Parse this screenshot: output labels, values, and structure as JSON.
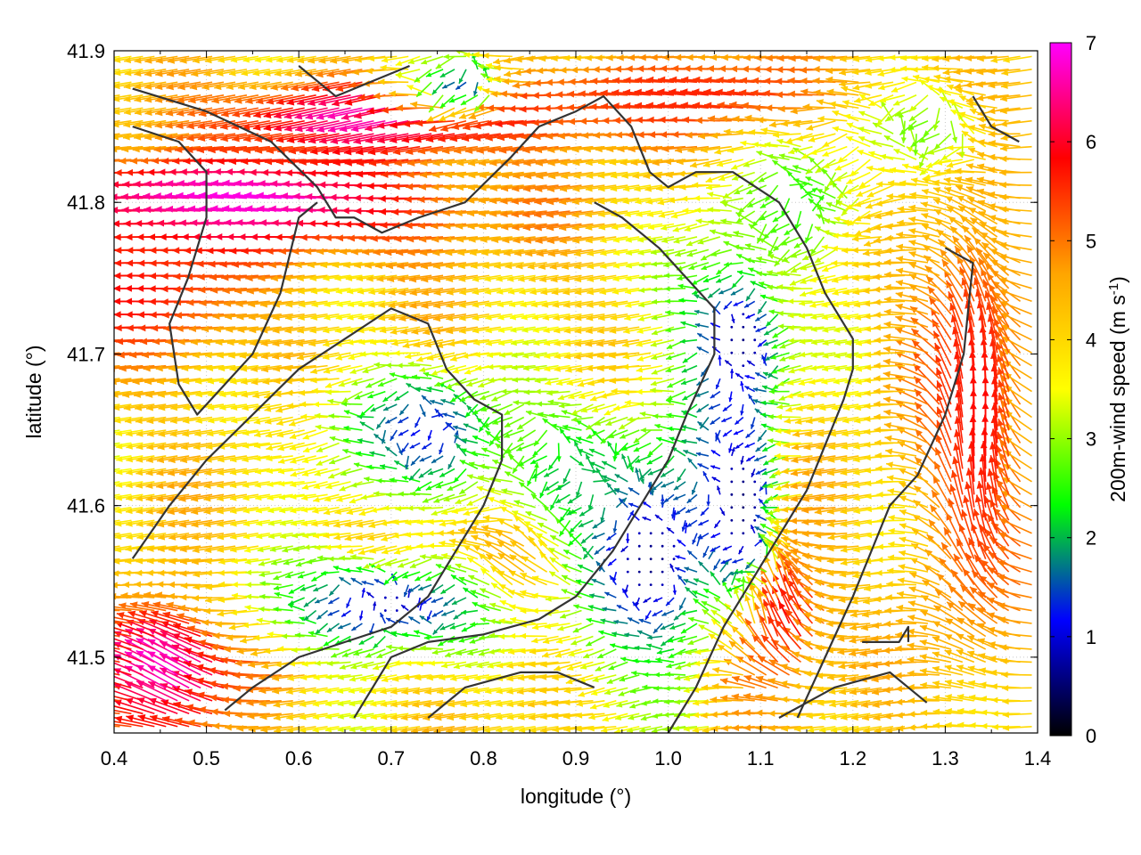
{
  "chart_data": {
    "type": "vector-field",
    "xlabel": "longitude (°)",
    "ylabel": "latitude (°)",
    "xlim": [
      0.4,
      1.4
    ],
    "ylim": [
      41.45,
      41.9
    ],
    "xticks": [
      "0.4",
      "0.5",
      "0.6",
      "0.7",
      "0.8",
      "0.9",
      "1.0",
      "1.1",
      "1.2",
      "1.3",
      "1.4"
    ],
    "yticks": [
      "41.5",
      "41.6",
      "41.7",
      "41.8",
      "41.9"
    ],
    "grid": true,
    "colorbar": {
      "label_main": "200m-wind speed (m s",
      "label_sup": "-1",
      "label_end": ")",
      "min": 0,
      "max": 7,
      "ticks": [
        "0",
        "1",
        "2",
        "3",
        "4",
        "5",
        "6",
        "7"
      ],
      "stops": [
        "#000000",
        "#0000ff",
        "#00ff00",
        "#ffff00",
        "#ffa500",
        "#ff0000",
        "#ff00ff"
      ]
    },
    "field": {
      "background_speed": 4.0,
      "background_dir": [
        -0.95,
        -0.15
      ],
      "features": [
        {
          "kind": "jet",
          "lon": 0.55,
          "lat": 41.8,
          "rx": 0.25,
          "ry": 0.035,
          "speed": 7.0,
          "dir": [
            -1.0,
            0.08
          ]
        },
        {
          "kind": "jet",
          "lon": 0.72,
          "lat": 41.86,
          "rx": 0.2,
          "ry": 0.025,
          "speed": 6.8,
          "dir": [
            -0.97,
            -0.22
          ]
        },
        {
          "kind": "jet",
          "lon": 0.45,
          "lat": 41.74,
          "rx": 0.12,
          "ry": 0.05,
          "speed": 5.8,
          "dir": [
            -1.0,
            0.0
          ]
        },
        {
          "kind": "jet",
          "lon": 1.05,
          "lat": 41.87,
          "rx": 0.22,
          "ry": 0.03,
          "speed": 5.6,
          "dir": [
            -1.0,
            0.1
          ]
        },
        {
          "kind": "jet",
          "lon": 1.34,
          "lat": 41.65,
          "rx": 0.06,
          "ry": 0.15,
          "speed": 5.8,
          "dir": [
            0.0,
            1.0
          ]
        },
        {
          "kind": "jet",
          "lon": 1.12,
          "lat": 41.53,
          "rx": 0.06,
          "ry": 0.05,
          "speed": 6.5,
          "dir": [
            -0.3,
            0.95
          ]
        },
        {
          "kind": "jet",
          "lon": 0.47,
          "lat": 41.49,
          "rx": 0.08,
          "ry": 0.05,
          "speed": 6.8,
          "dir": [
            -0.85,
            0.5
          ]
        },
        {
          "kind": "jet",
          "lon": 0.85,
          "lat": 41.56,
          "rx": 0.06,
          "ry": 0.03,
          "speed": 5.3,
          "dir": [
            -0.7,
            0.7
          ]
        },
        {
          "kind": "calm",
          "lon": 0.74,
          "lat": 41.65,
          "rx": 0.1,
          "ry": 0.04,
          "speed": 1.2
        },
        {
          "kind": "calm",
          "lon": 0.7,
          "lat": 41.535,
          "rx": 0.12,
          "ry": 0.03,
          "speed": 0.8
        },
        {
          "kind": "calm",
          "lon": 0.98,
          "lat": 41.57,
          "rx": 0.08,
          "ry": 0.08,
          "speed": 0.5
        },
        {
          "kind": "calm",
          "lon": 1.08,
          "lat": 41.71,
          "rx": 0.06,
          "ry": 0.06,
          "speed": 0.6
        },
        {
          "kind": "calm",
          "lon": 1.08,
          "lat": 41.6,
          "rx": 0.05,
          "ry": 0.07,
          "speed": 0.5
        },
        {
          "kind": "calm",
          "lon": 0.78,
          "lat": 41.88,
          "rx": 0.06,
          "ry": 0.02,
          "speed": 1.5
        },
        {
          "kind": "calm",
          "lon": 0.9,
          "lat": 41.62,
          "rx": 0.08,
          "ry": 0.04,
          "speed": 2.0
        },
        {
          "kind": "calm",
          "lon": 1.15,
          "lat": 41.8,
          "rx": 0.08,
          "ry": 0.04,
          "speed": 2.5
        },
        {
          "kind": "calm",
          "lon": 1.28,
          "lat": 41.85,
          "rx": 0.08,
          "ry": 0.03,
          "speed": 2.8
        }
      ]
    },
    "contours": [
      [
        [
          0.42,
          41.875
        ],
        [
          0.5,
          41.86
        ],
        [
          0.57,
          41.84
        ],
        [
          0.62,
          41.81
        ],
        [
          0.64,
          41.79
        ],
        [
          0.66,
          41.79
        ],
        [
          0.69,
          41.78
        ],
        [
          0.73,
          41.79
        ],
        [
          0.78,
          41.8
        ],
        [
          0.83,
          41.83
        ],
        [
          0.86,
          41.85
        ],
        [
          0.9,
          41.86
        ],
        [
          0.93,
          41.87
        ],
        [
          0.96,
          41.85
        ],
        [
          0.98,
          41.82
        ],
        [
          1.0,
          41.81
        ],
        [
          1.03,
          41.82
        ],
        [
          1.07,
          41.82
        ],
        [
          1.12,
          41.8
        ],
        [
          1.15,
          41.77
        ],
        [
          1.17,
          41.74
        ],
        [
          1.2,
          41.71
        ],
        [
          1.2,
          41.69
        ],
        [
          1.19,
          41.67
        ],
        [
          1.17,
          41.64
        ],
        [
          1.15,
          41.61
        ],
        [
          1.12,
          41.58
        ],
        [
          1.09,
          41.55
        ],
        [
          1.06,
          41.52
        ],
        [
          1.03,
          41.48
        ],
        [
          1.0,
          41.45
        ]
      ],
      [
        [
          0.42,
          41.85
        ],
        [
          0.47,
          41.84
        ],
        [
          0.5,
          41.82
        ],
        [
          0.5,
          41.79
        ],
        [
          0.48,
          41.75
        ],
        [
          0.46,
          41.72
        ],
        [
          0.47,
          41.68
        ],
        [
          0.49,
          41.66
        ],
        [
          0.52,
          41.68
        ],
        [
          0.55,
          41.7
        ],
        [
          0.58,
          41.74
        ],
        [
          0.6,
          41.79
        ],
        [
          0.62,
          41.8
        ]
      ],
      [
        [
          0.42,
          41.565
        ],
        [
          0.46,
          41.6
        ],
        [
          0.5,
          41.63
        ],
        [
          0.55,
          41.66
        ],
        [
          0.6,
          41.69
        ],
        [
          0.65,
          41.71
        ],
        [
          0.7,
          41.73
        ],
        [
          0.74,
          41.72
        ],
        [
          0.76,
          41.69
        ],
        [
          0.79,
          41.67
        ],
        [
          0.82,
          41.66
        ],
        [
          0.82,
          41.63
        ],
        [
          0.8,
          41.6
        ],
        [
          0.77,
          41.57
        ],
        [
          0.74,
          41.54
        ],
        [
          0.7,
          41.52
        ],
        [
          0.65,
          41.51
        ],
        [
          0.6,
          41.5
        ],
        [
          0.55,
          41.48
        ],
        [
          0.52,
          41.465
        ]
      ],
      [
        [
          0.66,
          41.46
        ],
        [
          0.7,
          41.5
        ],
        [
          0.74,
          41.51
        ],
        [
          0.8,
          41.515
        ],
        [
          0.86,
          41.525
        ],
        [
          0.9,
          41.54
        ],
        [
          0.94,
          41.57
        ],
        [
          0.97,
          41.6
        ],
        [
          1.0,
          41.63
        ],
        [
          1.02,
          41.66
        ],
        [
          1.05,
          41.7
        ],
        [
          1.05,
          41.73
        ],
        [
          1.02,
          41.75
        ],
        [
          0.99,
          41.77
        ],
        [
          0.95,
          41.79
        ],
        [
          0.92,
          41.8
        ]
      ],
      [
        [
          0.74,
          41.46
        ],
        [
          0.78,
          41.48
        ],
        [
          0.84,
          41.49
        ],
        [
          0.88,
          41.49
        ],
        [
          0.92,
          41.48
        ]
      ],
      [
        [
          1.3,
          41.77
        ],
        [
          1.33,
          41.76
        ],
        [
          1.32,
          41.7
        ],
        [
          1.3,
          41.66
        ],
        [
          1.27,
          41.62
        ],
        [
          1.24,
          41.6
        ],
        [
          1.22,
          41.57
        ],
        [
          1.2,
          41.54
        ],
        [
          1.17,
          41.5
        ],
        [
          1.14,
          41.46
        ]
      ],
      [
        [
          1.21,
          41.51
        ],
        [
          1.25,
          41.51
        ],
        [
          1.26,
          41.52
        ],
        [
          1.26,
          41.51
        ]
      ],
      [
        [
          1.12,
          41.46
        ],
        [
          1.18,
          41.48
        ],
        [
          1.24,
          41.49
        ],
        [
          1.28,
          41.47
        ]
      ],
      [
        [
          1.33,
          41.87
        ],
        [
          1.35,
          41.85
        ],
        [
          1.38,
          41.84
        ]
      ],
      [
        [
          0.6,
          41.89
        ],
        [
          0.64,
          41.87
        ],
        [
          0.68,
          41.88
        ],
        [
          0.72,
          41.89
        ]
      ]
    ]
  }
}
